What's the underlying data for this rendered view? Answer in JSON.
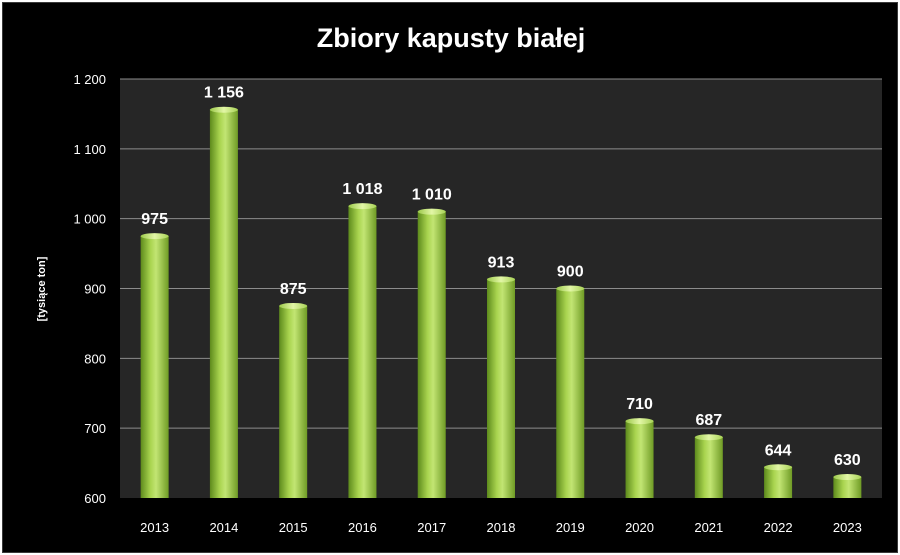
{
  "chart_data": {
    "type": "bar",
    "title": "Zbiory kapusty białej",
    "xlabel": "",
    "ylabel": "[tysiące ton]",
    "categories": [
      "2013",
      "2014",
      "2015",
      "2016",
      "2017",
      "2018",
      "2019",
      "2020",
      "2021",
      "2022",
      "2023"
    ],
    "values": [
      975,
      1156,
      875,
      1018,
      1010,
      913,
      900,
      710,
      687,
      644,
      630
    ],
    "value_labels": [
      "975",
      "1 156",
      "875",
      "1 018",
      "1 010",
      "913",
      "900",
      "710",
      "687",
      "644",
      "630"
    ],
    "ylim": [
      600,
      1200
    ],
    "yticks": [
      600,
      700,
      800,
      900,
      1000,
      1100,
      1200
    ],
    "ytick_labels": [
      "600",
      "700",
      "800",
      "900",
      "1 000",
      "1 100",
      "1 200"
    ],
    "grid": true,
    "legend": "none",
    "colors": {
      "background": "#000000",
      "plot_area": "#262626",
      "gridline": "#8c8c8c",
      "bar_light": "#c9ea7a",
      "bar_mid": "#92c13c",
      "bar_dark": "#4f7a16",
      "text": "#ffffff"
    }
  }
}
